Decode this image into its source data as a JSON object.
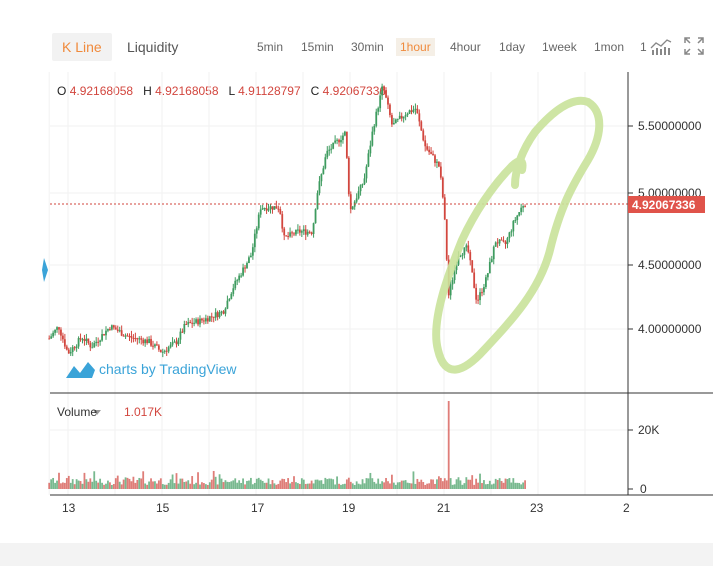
{
  "tabs": [
    {
      "label": "K Line",
      "active": true
    },
    {
      "label": "Liquidity",
      "active": false
    }
  ],
  "intervals": [
    {
      "label": "5min",
      "active": false
    },
    {
      "label": "15min",
      "active": false
    },
    {
      "label": "30min",
      "active": false
    },
    {
      "label": "1hour",
      "active": true
    },
    {
      "label": "4hour",
      "active": false
    },
    {
      "label": "1day",
      "active": false
    },
    {
      "label": "1week",
      "active": false
    },
    {
      "label": "1mon",
      "active": false
    },
    {
      "label": "1",
      "active": false
    }
  ],
  "icons": {
    "indicator": "chart-indicator-icon",
    "fullscreen": "fullscreen-icon",
    "scroll_handle": "left-scroll-handle-icon",
    "volume_dropdown": "chevron-down-icon",
    "brand": "tradingview-logo-icon"
  },
  "ohlc": {
    "o_label": "O",
    "o": "4.92168058",
    "h_label": "H",
    "h": "4.92168058",
    "l_label": "L",
    "l": "4.91128797",
    "c_label": "C",
    "c": "4.92067336"
  },
  "brand": {
    "text": "charts by TradingView"
  },
  "price_axis": {
    "ticks": [
      "5.50000000",
      "5.00000000",
      "4.50000000",
      "4.00000000"
    ],
    "current": "4.92067336"
  },
  "volume": {
    "label": "Volume",
    "value": "1.017K",
    "ticks": [
      "20K",
      "0"
    ]
  },
  "time_axis": {
    "ticks": [
      "13",
      "15",
      "17",
      "19",
      "21",
      "23",
      "2"
    ]
  },
  "colors": {
    "up": "#3e9b5f",
    "down": "#d2463e",
    "accent": "#f08a3c",
    "annotation": "#c9e29a"
  },
  "chart_data": {
    "type": "candlestick",
    "interval": "1hour",
    "x_ticks": [
      "13",
      "15",
      "17",
      "19",
      "21",
      "23",
      "2"
    ],
    "y_ticks": [
      5.5,
      5.0,
      4.5,
      4.0
    ],
    "current_price": 4.92067336,
    "price_path": [
      {
        "day": 12.6,
        "price": 3.93
      },
      {
        "day": 12.8,
        "price": 4.02
      },
      {
        "day": 13.0,
        "price": 3.82
      },
      {
        "day": 13.3,
        "price": 3.94
      },
      {
        "day": 13.5,
        "price": 3.87
      },
      {
        "day": 13.9,
        "price": 4.02
      },
      {
        "day": 14.3,
        "price": 3.94
      },
      {
        "day": 14.7,
        "price": 3.91
      },
      {
        "day": 15.0,
        "price": 3.83
      },
      {
        "day": 15.3,
        "price": 3.9
      },
      {
        "day": 15.5,
        "price": 4.03
      },
      {
        "day": 15.9,
        "price": 4.07
      },
      {
        "day": 16.3,
        "price": 4.13
      },
      {
        "day": 16.5,
        "price": 4.3
      },
      {
        "day": 16.9,
        "price": 4.55
      },
      {
        "day": 17.1,
        "price": 4.9
      },
      {
        "day": 17.5,
        "price": 4.9
      },
      {
        "day": 17.6,
        "price": 4.67
      },
      {
        "day": 17.9,
        "price": 4.72
      },
      {
        "day": 18.2,
        "price": 4.72
      },
      {
        "day": 18.3,
        "price": 5.0
      },
      {
        "day": 18.5,
        "price": 5.3
      },
      {
        "day": 18.9,
        "price": 5.45
      },
      {
        "day": 19.0,
        "price": 4.87
      },
      {
        "day": 19.3,
        "price": 5.1
      },
      {
        "day": 19.5,
        "price": 5.5
      },
      {
        "day": 19.7,
        "price": 5.8
      },
      {
        "day": 19.9,
        "price": 5.5
      },
      {
        "day": 20.2,
        "price": 5.6
      },
      {
        "day": 20.4,
        "price": 5.63
      },
      {
        "day": 20.6,
        "price": 5.35
      },
      {
        "day": 20.9,
        "price": 5.2
      },
      {
        "day": 21.0,
        "price": 4.9
      },
      {
        "day": 21.1,
        "price": 4.25
      },
      {
        "day": 21.3,
        "price": 4.55
      },
      {
        "day": 21.5,
        "price": 4.6
      },
      {
        "day": 21.7,
        "price": 4.2
      },
      {
        "day": 21.9,
        "price": 4.37
      },
      {
        "day": 22.1,
        "price": 4.65
      },
      {
        "day": 22.3,
        "price": 4.62
      },
      {
        "day": 22.5,
        "price": 4.8
      },
      {
        "day": 22.7,
        "price": 4.93
      }
    ]
  }
}
